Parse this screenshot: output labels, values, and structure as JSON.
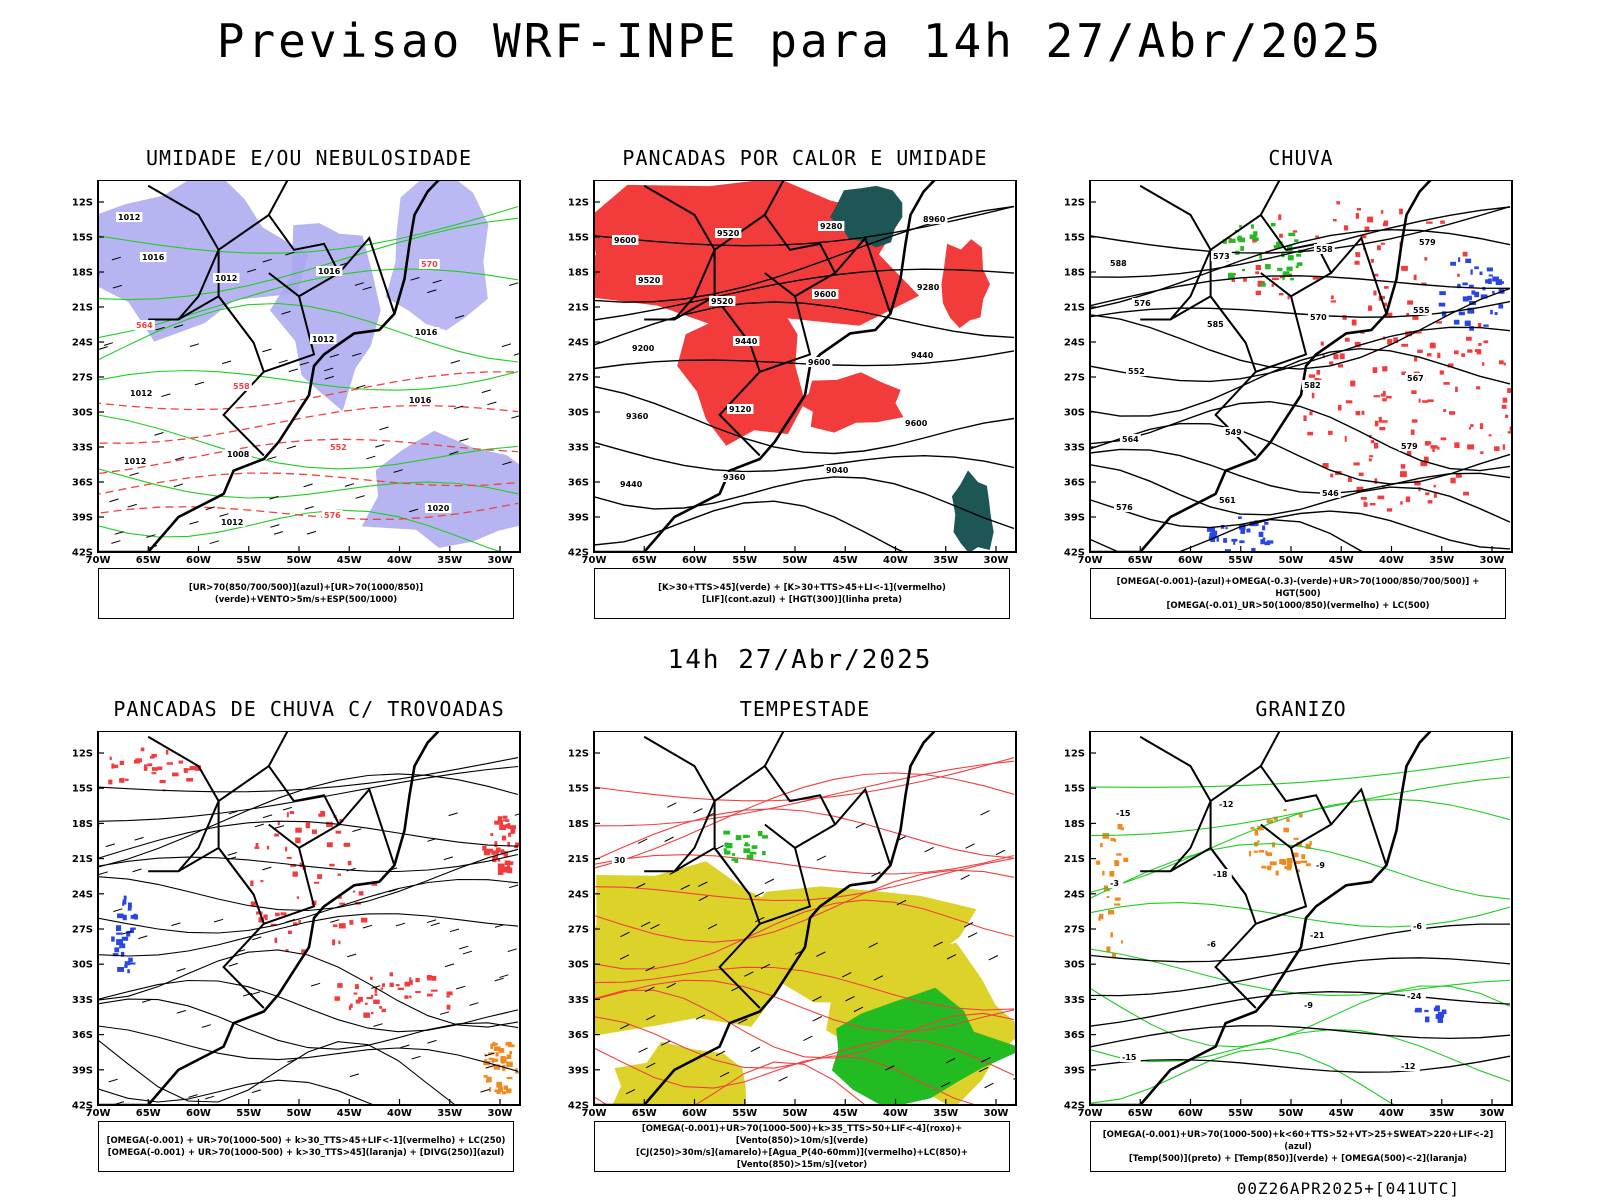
{
  "title": "Previsao WRF-INPE  para 14h 27/Abr/2025",
  "mid_title": "14h 27/Abr/2025",
  "run_label": "00Z26APR2025+[041UTC]",
  "lat_labels": [
    "12S",
    "15S",
    "18S",
    "21S",
    "24S",
    "27S",
    "30S",
    "33S",
    "36S",
    "39S",
    "42S"
  ],
  "lon_labels": [
    "70W",
    "65W",
    "60W",
    "55W",
    "50W",
    "45W",
    "40W",
    "35W",
    "30W"
  ],
  "colors": {
    "red_fill": "#f23c3c",
    "green_fill": "#22bb22",
    "yellow_fill": "#dcd22a",
    "lavender_fill": "#a9a8f0",
    "teal_fill": "#1e5555",
    "blue_contour": "#2845e6",
    "green_contour": "#22cc22",
    "red_contour": "#f04040",
    "orange_fill": "#f08a20"
  },
  "panels": [
    {
      "title": "UMIDADE E/OU NEBULOSIDADE",
      "legend": [
        "[UR>70(850/700/500)](azul)+[UR>70(1000/850)](verde)+VENTO>5m/s+ESP(500/1000)"
      ],
      "contour_labels": [
        "1012",
        "1012",
        "1012",
        "1016",
        "1012",
        "1012",
        "1016",
        "1016",
        "1012",
        "1008",
        "576",
        "570",
        "564",
        "558",
        "552",
        "1020",
        "1016"
      ]
    },
    {
      "title": "PANCADAS POR CALOR E UMIDADE",
      "legend": [
        "[K>30+TTS>45](verde) + [K>30+TTS>45+LI<-1](vermelho)",
        "[LIF](cont.azul) + [HGT(300)](linha preta)"
      ],
      "contour_labels": [
        "9600",
        "9520",
        "9600",
        "9600",
        "9440",
        "9520",
        "9600",
        "9440",
        "9360",
        "9360",
        "9280",
        "9280",
        "9200",
        "9120",
        "9040",
        "8960",
        "9520",
        "9440"
      ]
    },
    {
      "title": "CHUVA",
      "legend": [
        "[OMEGA(-0.001)-(azul)+OMEGA(-0.3)-(verde)+UR>70(1000/850/700/500)] + HGT(500)",
        "[OMEGA(-0.01)_UR>50(1000/850)(vermelho) + LC(500)"
      ],
      "contour_labels": [
        "588",
        "585",
        "582",
        "579",
        "576",
        "573",
        "570",
        "567",
        "564",
        "561",
        "558",
        "555",
        "552",
        "549",
        "546",
        "579",
        "576"
      ]
    },
    {
      "title": "PANCADAS DE CHUVA C/ TROVOADAS",
      "legend": [
        "[OMEGA(-0.001) + UR>70(1000-500) + k>30_TTS>45+LIF<-1](vermelho) + LC(250)",
        "[OMEGA(-0.001) + UR>70(1000-500) + k>30_TTS>45](laranja) + [DIVG(250)](azul)"
      ],
      "contour_labels": []
    },
    {
      "title": "TEMPESTADE",
      "legend": [
        "[OMEGA(-0.001)+UR>70(1000-500)+k>35_TTS>50+LIF<-4](roxo)+[Vento(850)>10m/s](verde)",
        "[CJ(250)>30m/s](amarelo)+[Agua_P(40-60mm)](vermelho)+LC(850)+[Vento(850)>15m/s](vetor)"
      ],
      "contour_labels": [
        "30"
      ]
    },
    {
      "title": "GRANIZO",
      "legend": [
        "[OMEGA(-0.001)+UR>70(1000-500)+k<60+TTS>52+VT>25+SWEAT>220+LIF<-2](azul)",
        "[Temp(500)](preto) + [Temp(850)](verde) + [OMEGA(500)<-2](laranja)"
      ],
      "contour_labels": [
        "-3",
        "-6",
        "-9",
        "-12",
        "-15",
        "-18",
        "-21",
        "-24",
        "-15",
        "-12",
        "-9",
        "-6"
      ]
    }
  ]
}
